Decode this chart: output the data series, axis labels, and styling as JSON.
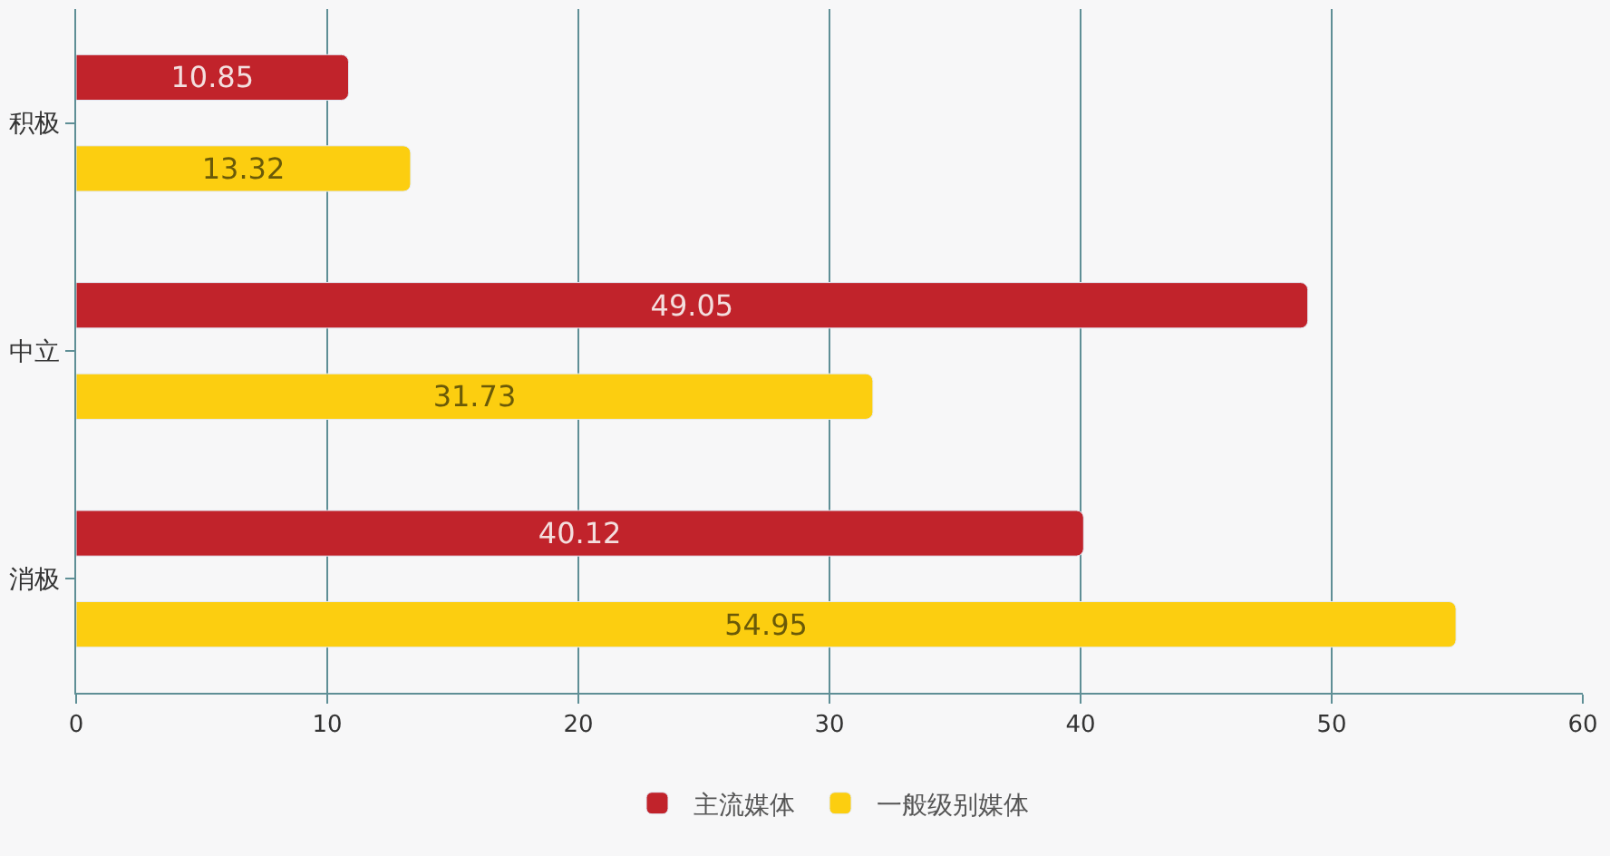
{
  "chart_data": {
    "type": "bar",
    "orientation": "horizontal",
    "categories": [
      "积极",
      "中立",
      "消极"
    ],
    "series": [
      {
        "name": "主流媒体",
        "color": "#c1232b",
        "values": [
          10.85,
          49.05,
          40.12
        ]
      },
      {
        "name": "一般级别媒体",
        "color": "#fcce10",
        "values": [
          13.32,
          31.73,
          54.95
        ]
      }
    ],
    "xlim": [
      0,
      60
    ],
    "xticks": [
      0,
      10,
      20,
      30,
      40,
      50,
      60
    ],
    "grid": "x",
    "legend": "bottom",
    "data_labels": true
  }
}
